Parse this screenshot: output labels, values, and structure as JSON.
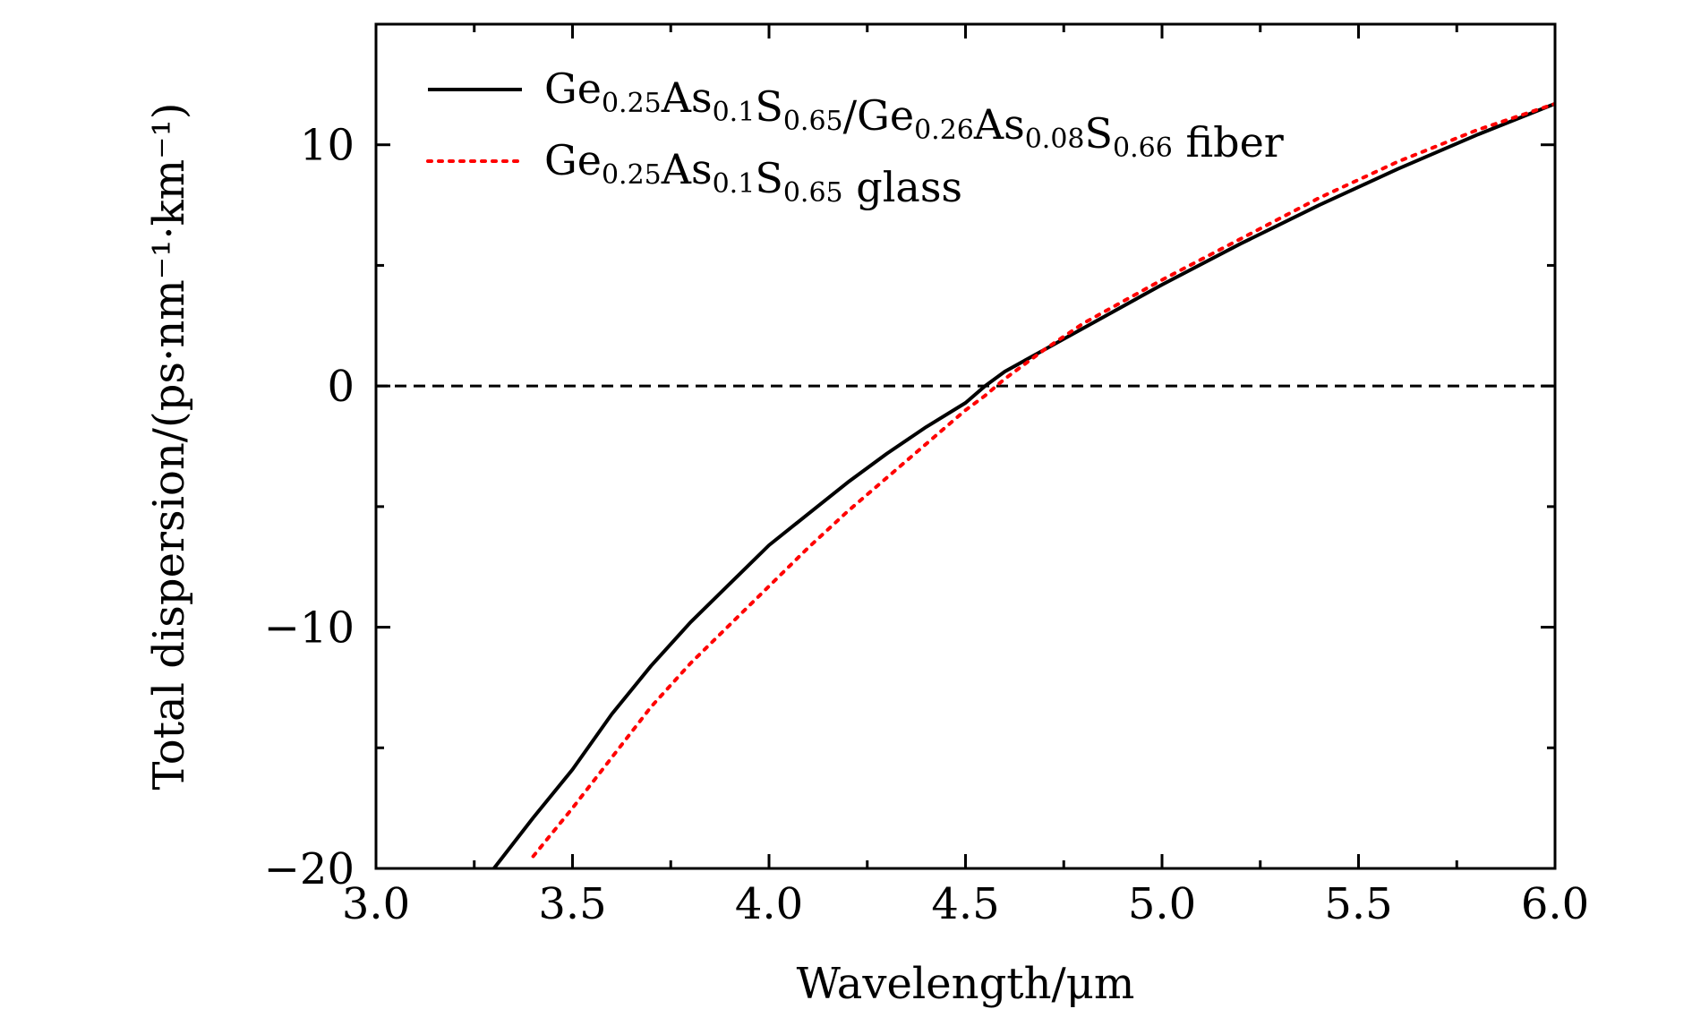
{
  "chart_data": {
    "type": "line",
    "xlabel": "Wavelength/μm",
    "ylabel": "Total dispersion/(ps·nm⁻¹·km⁻¹)",
    "xlim": [
      3.0,
      6.0
    ],
    "ylim": [
      -20,
      15
    ],
    "x_ticks": [
      3.0,
      3.5,
      4.0,
      4.5,
      5.0,
      5.5,
      6.0
    ],
    "x_tick_labels": [
      "3.0",
      "3.5",
      "4.0",
      "4.5",
      "5.0",
      "5.5",
      "6.0"
    ],
    "y_ticks": [
      -20,
      -10,
      0,
      10
    ],
    "y_tick_labels": [
      "−20",
      "−10",
      "0",
      "10"
    ],
    "grid": false,
    "legend_position": "top-left",
    "reference_line": {
      "y": 0,
      "style": "dashed",
      "color": "#000000"
    },
    "series": [
      {
        "name": "Ge0.25As0.1S0.65/Ge0.26As0.08S0.66 fiber",
        "name_parts": [
          {
            "t": "Ge"
          },
          {
            "t": "0.25",
            "sub": true
          },
          {
            "t": "As"
          },
          {
            "t": "0.1",
            "sub": true
          },
          {
            "t": "S"
          },
          {
            "t": "0.65",
            "sub": true
          },
          {
            "t": "/Ge"
          },
          {
            "t": "0.26",
            "sub": true
          },
          {
            "t": "As"
          },
          {
            "t": "0.08",
            "sub": true
          },
          {
            "t": "S"
          },
          {
            "t": "0.66",
            "sub": true
          },
          {
            "t": " fiber"
          }
        ],
        "color": "#000000",
        "style": "solid",
        "x": [
          3.3,
          3.4,
          3.5,
          3.6,
          3.7,
          3.8,
          3.9,
          4.0,
          4.1,
          4.2,
          4.3,
          4.4,
          4.5,
          4.55,
          4.6,
          4.7,
          4.8,
          5.0,
          5.2,
          5.4,
          5.6,
          5.8,
          6.0
        ],
        "y": [
          -20.0,
          -17.9,
          -15.9,
          -13.6,
          -11.6,
          -9.8,
          -8.2,
          -6.6,
          -5.3,
          -4.0,
          -2.8,
          -1.7,
          -0.7,
          0.0,
          0.6,
          1.5,
          2.4,
          4.2,
          5.9,
          7.5,
          9.0,
          10.4,
          11.7
        ]
      },
      {
        "name": "Ge0.25As0.1S0.65 glass",
        "name_parts": [
          {
            "t": "Ge"
          },
          {
            "t": "0.25",
            "sub": true
          },
          {
            "t": "As"
          },
          {
            "t": "0.1",
            "sub": true
          },
          {
            "t": "S"
          },
          {
            "t": "0.65",
            "sub": true
          },
          {
            "t": " glass"
          }
        ],
        "color": "#ff0000",
        "style": "dotted",
        "x": [
          3.4,
          3.5,
          3.6,
          3.7,
          3.8,
          3.9,
          4.0,
          4.1,
          4.2,
          4.3,
          4.4,
          4.5,
          4.55,
          4.6,
          4.7,
          4.8,
          5.0,
          5.2,
          5.4,
          5.6,
          5.8,
          6.0
        ],
        "y": [
          -19.5,
          -17.5,
          -15.4,
          -13.3,
          -11.5,
          -9.9,
          -8.3,
          -6.7,
          -5.2,
          -3.8,
          -2.4,
          -1.0,
          -0.4,
          0.3,
          1.5,
          2.6,
          4.4,
          6.1,
          7.8,
          9.3,
          10.6,
          11.7
        ]
      }
    ]
  }
}
